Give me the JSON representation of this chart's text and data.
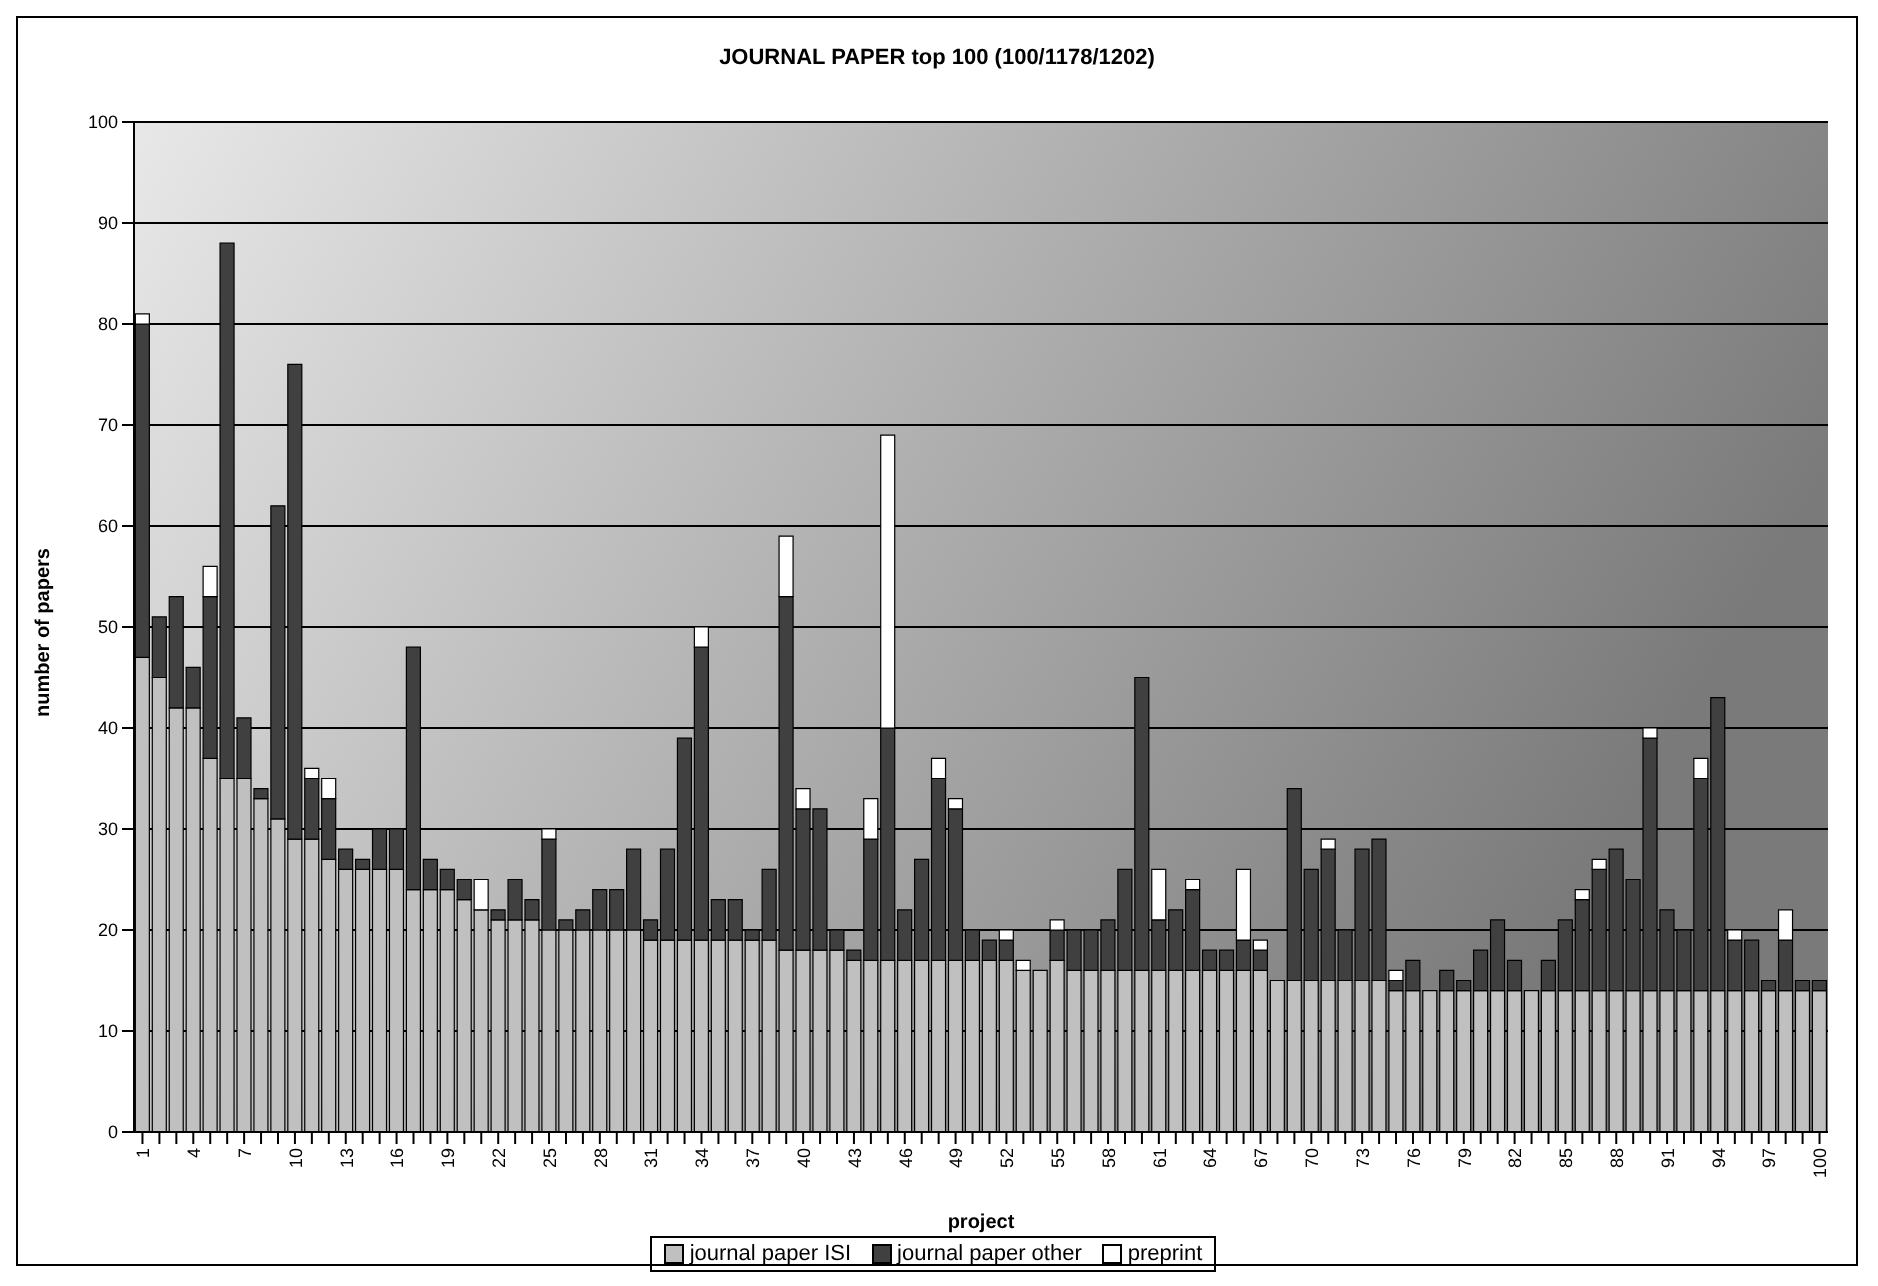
{
  "chart_data": {
    "type": "bar",
    "title": "JOURNAL PAPER top 100 (100/1178/1202)",
    "xlabel": "project",
    "ylabel": "number of papers",
    "categories": [
      "1",
      null,
      null,
      "4",
      null,
      null,
      "7",
      null,
      null,
      "10",
      null,
      null,
      "13",
      null,
      null,
      "16",
      null,
      null,
      "19",
      null,
      null,
      "22",
      null,
      null,
      "25",
      null,
      null,
      "28",
      null,
      null,
      "31",
      null,
      null,
      "34",
      null,
      null,
      "37",
      null,
      null,
      "40",
      null,
      null,
      "43",
      null,
      null,
      "46",
      null,
      null,
      "49",
      null,
      null,
      "52",
      null,
      null,
      "55",
      null,
      null,
      "58",
      null,
      null,
      "61",
      null,
      null,
      "64",
      null,
      null,
      "67",
      null,
      null,
      "70",
      null,
      null,
      "73",
      null,
      null,
      "76",
      null,
      null,
      "79",
      null,
      null,
      "82",
      null,
      null,
      "85",
      null,
      null,
      "88",
      null,
      null,
      "91",
      null,
      null,
      "94",
      null,
      null,
      "97",
      null,
      null,
      "100"
    ],
    "stacked": true,
    "series": [
      {
        "name": "journal paper ISI",
        "color": "#c0c0c0",
        "values": [
          47,
          45,
          42,
          42,
          37,
          35,
          35,
          33,
          31,
          29,
          29,
          27,
          26,
          26,
          26,
          26,
          24,
          24,
          24,
          23,
          22,
          21,
          21,
          21,
          20,
          20,
          20,
          20,
          20,
          20,
          19,
          19,
          19,
          19,
          19,
          19,
          19,
          19,
          18,
          18,
          18,
          18,
          17,
          17,
          17,
          17,
          17,
          17,
          17,
          17,
          17,
          17,
          16,
          16,
          17,
          16,
          16,
          16,
          16,
          16,
          16,
          16,
          16,
          16,
          16,
          16,
          16,
          15,
          15,
          15,
          15,
          15,
          15,
          15,
          14,
          14,
          14,
          14,
          14,
          14,
          14,
          14,
          14,
          14,
          14,
          14,
          14,
          14,
          14,
          14,
          14,
          14,
          14,
          14,
          14,
          14,
          14,
          14,
          14,
          14
        ]
      },
      {
        "name": "journal paper other",
        "color": "#404040",
        "values": [
          33,
          6,
          11,
          4,
          16,
          53,
          6,
          1,
          31,
          47,
          6,
          6,
          2,
          1,
          4,
          4,
          24,
          3,
          2,
          2,
          0,
          1,
          4,
          2,
          9,
          1,
          2,
          4,
          4,
          8,
          2,
          9,
          20,
          29,
          4,
          4,
          1,
          7,
          35,
          14,
          14,
          2,
          1,
          12,
          23,
          5,
          10,
          18,
          15,
          3,
          2,
          2,
          0,
          0,
          3,
          4,
          4,
          5,
          10,
          29,
          5,
          6,
          8,
          2,
          2,
          3,
          2,
          0,
          19,
          11,
          13,
          5,
          13,
          14,
          1,
          3,
          0,
          2,
          1,
          4,
          7,
          3,
          0,
          3,
          7,
          9,
          12,
          14,
          11,
          25,
          8,
          6,
          21,
          29,
          5,
          5,
          1,
          5,
          1,
          1
        ]
      },
      {
        "name": "preprint",
        "color": "#ffffff",
        "values": [
          1,
          0,
          0,
          0,
          3,
          0,
          0,
          0,
          0,
          0,
          1,
          2,
          0,
          0,
          0,
          0,
          0,
          0,
          0,
          0,
          3,
          0,
          0,
          0,
          1,
          0,
          0,
          0,
          0,
          0,
          0,
          0,
          0,
          2,
          0,
          0,
          0,
          0,
          6,
          2,
          0,
          0,
          0,
          4,
          29,
          0,
          0,
          2,
          1,
          0,
          0,
          1,
          1,
          0,
          1,
          0,
          0,
          0,
          0,
          0,
          5,
          0,
          1,
          0,
          0,
          7,
          1,
          0,
          0,
          0,
          1,
          0,
          0,
          0,
          1,
          0,
          0,
          0,
          0,
          0,
          0,
          0,
          0,
          0,
          0,
          1,
          1,
          0,
          0,
          1,
          0,
          0,
          2,
          0,
          1,
          0,
          0,
          3,
          0,
          0
        ]
      }
    ],
    "ylim": [
      0,
      100
    ],
    "yticks": [
      0,
      10,
      20,
      30,
      40,
      50,
      60,
      70,
      80,
      90,
      100
    ],
    "grid": "y",
    "legend": "bottom"
  }
}
